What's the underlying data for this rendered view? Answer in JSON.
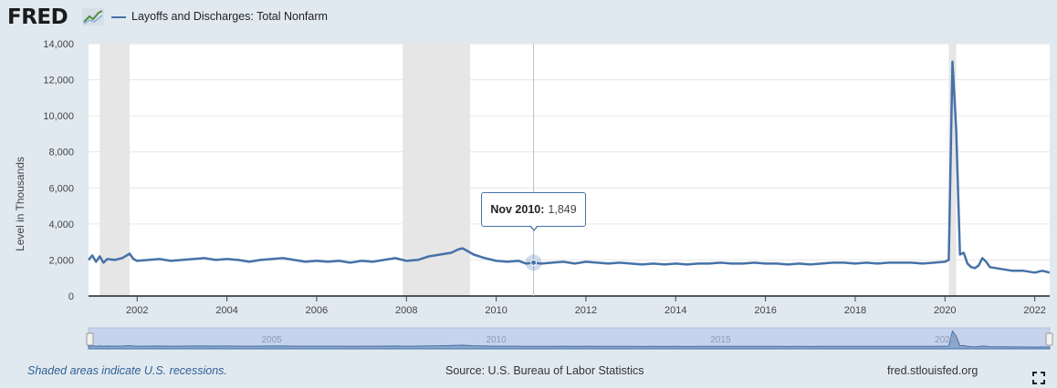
{
  "header": {
    "logo_text": "FRED",
    "series_title": "Layoffs and Discharges: Total Nonfarm",
    "series_color": "#4572a7"
  },
  "tooltip": {
    "date": "Nov 2010:",
    "value": "1,849"
  },
  "footer": {
    "note": "Shaded areas indicate U.S. recessions.",
    "source": "Source: U.S. Bureau of Labor Statistics",
    "site": "fred.stlouisfed.org",
    "fullscreen_icon": "expand-icon"
  },
  "navigator": {
    "labels": [
      "2005",
      "2010",
      "2015",
      "2020"
    ]
  },
  "chart_data": {
    "type": "line",
    "title": "Layoffs and Discharges: Total Nonfarm",
    "ylabel": "Level in Thousands",
    "xlabel": "",
    "ylim": [
      0,
      14000
    ],
    "yticks": [
      0,
      2000,
      4000,
      6000,
      8000,
      10000,
      12000,
      14000
    ],
    "ytick_labels": [
      "0",
      "2,000",
      "4,000",
      "6,000",
      "8,000",
      "10,000",
      "12,000",
      "14,000"
    ],
    "xlim": [
      2000.917,
      2022.333
    ],
    "xticks": [
      2002,
      2004,
      2006,
      2008,
      2010,
      2012,
      2014,
      2016,
      2018,
      2020,
      2022
    ],
    "xtick_labels": [
      "2002",
      "2004",
      "2006",
      "2008",
      "2010",
      "2012",
      "2014",
      "2016",
      "2018",
      "2020",
      "2022"
    ],
    "grid": true,
    "recessions": [
      [
        2001.167,
        2001.833
      ],
      [
        2007.917,
        2009.417
      ],
      [
        2020.083,
        2020.25
      ]
    ],
    "series_color": "#4572a7",
    "highlight": {
      "x": 2010.833,
      "y": 1849
    },
    "series": [
      {
        "x": [
          2000.917,
          2001.0,
          2001.083,
          2001.167,
          2001.25,
          2001.333,
          2001.5,
          2001.667,
          2001.833,
          2001.917,
          2002.0,
          2002.25,
          2002.5,
          2002.75,
          2003.0,
          2003.25,
          2003.5,
          2003.75,
          2004.0,
          2004.25,
          2004.5,
          2004.75,
          2005.0,
          2005.25,
          2005.5,
          2005.75,
          2006.0,
          2006.25,
          2006.5,
          2006.75,
          2007.0,
          2007.25,
          2007.5,
          2007.75,
          2008.0,
          2008.25,
          2008.5,
          2008.75,
          2009.0,
          2009.167,
          2009.25,
          2009.5,
          2009.75,
          2010.0,
          2010.25,
          2010.5,
          2010.667,
          2010.833,
          2011.0,
          2011.25,
          2011.5,
          2011.75,
          2012.0,
          2012.25,
          2012.5,
          2012.75,
          2013.0,
          2013.25,
          2013.5,
          2013.75,
          2014.0,
          2014.25,
          2014.5,
          2014.75,
          2015.0,
          2015.25,
          2015.5,
          2015.75,
          2016.0,
          2016.25,
          2016.5,
          2016.75,
          2017.0,
          2017.25,
          2017.5,
          2017.75,
          2018.0,
          2018.25,
          2018.5,
          2018.75,
          2019.0,
          2019.25,
          2019.5,
          2019.75,
          2020.0,
          2020.083,
          2020.167,
          2020.25,
          2020.333,
          2020.417,
          2020.5,
          2020.583,
          2020.667,
          2020.75,
          2020.833,
          2020.917,
          2021.0,
          2021.25,
          2021.5,
          2021.75,
          2022.0,
          2022.167,
          2022.333
        ],
        "y": [
          2000,
          2250,
          1900,
          2200,
          1850,
          2050,
          2000,
          2100,
          2350,
          2050,
          1950,
          2000,
          2050,
          1950,
          2000,
          2050,
          2100,
          2000,
          2050,
          2000,
          1900,
          2000,
          2050,
          2100,
          2000,
          1900,
          1950,
          1900,
          1950,
          1850,
          1950,
          1900,
          2000,
          2100,
          1950,
          2000,
          2200,
          2300,
          2400,
          2600,
          2650,
          2300,
          2100,
          1950,
          1900,
          1950,
          1800,
          1849,
          1800,
          1850,
          1900,
          1800,
          1900,
          1850,
          1800,
          1850,
          1800,
          1750,
          1800,
          1750,
          1800,
          1750,
          1800,
          1800,
          1850,
          1800,
          1800,
          1850,
          1800,
          1800,
          1750,
          1800,
          1750,
          1800,
          1850,
          1850,
          1800,
          1850,
          1800,
          1850,
          1850,
          1850,
          1800,
          1850,
          1900,
          2000,
          13000,
          9200,
          2300,
          2400,
          1800,
          1600,
          1550,
          1700,
          2100,
          1900,
          1600,
          1500,
          1400,
          1400,
          1300,
          1400,
          1300
        ]
      }
    ]
  }
}
